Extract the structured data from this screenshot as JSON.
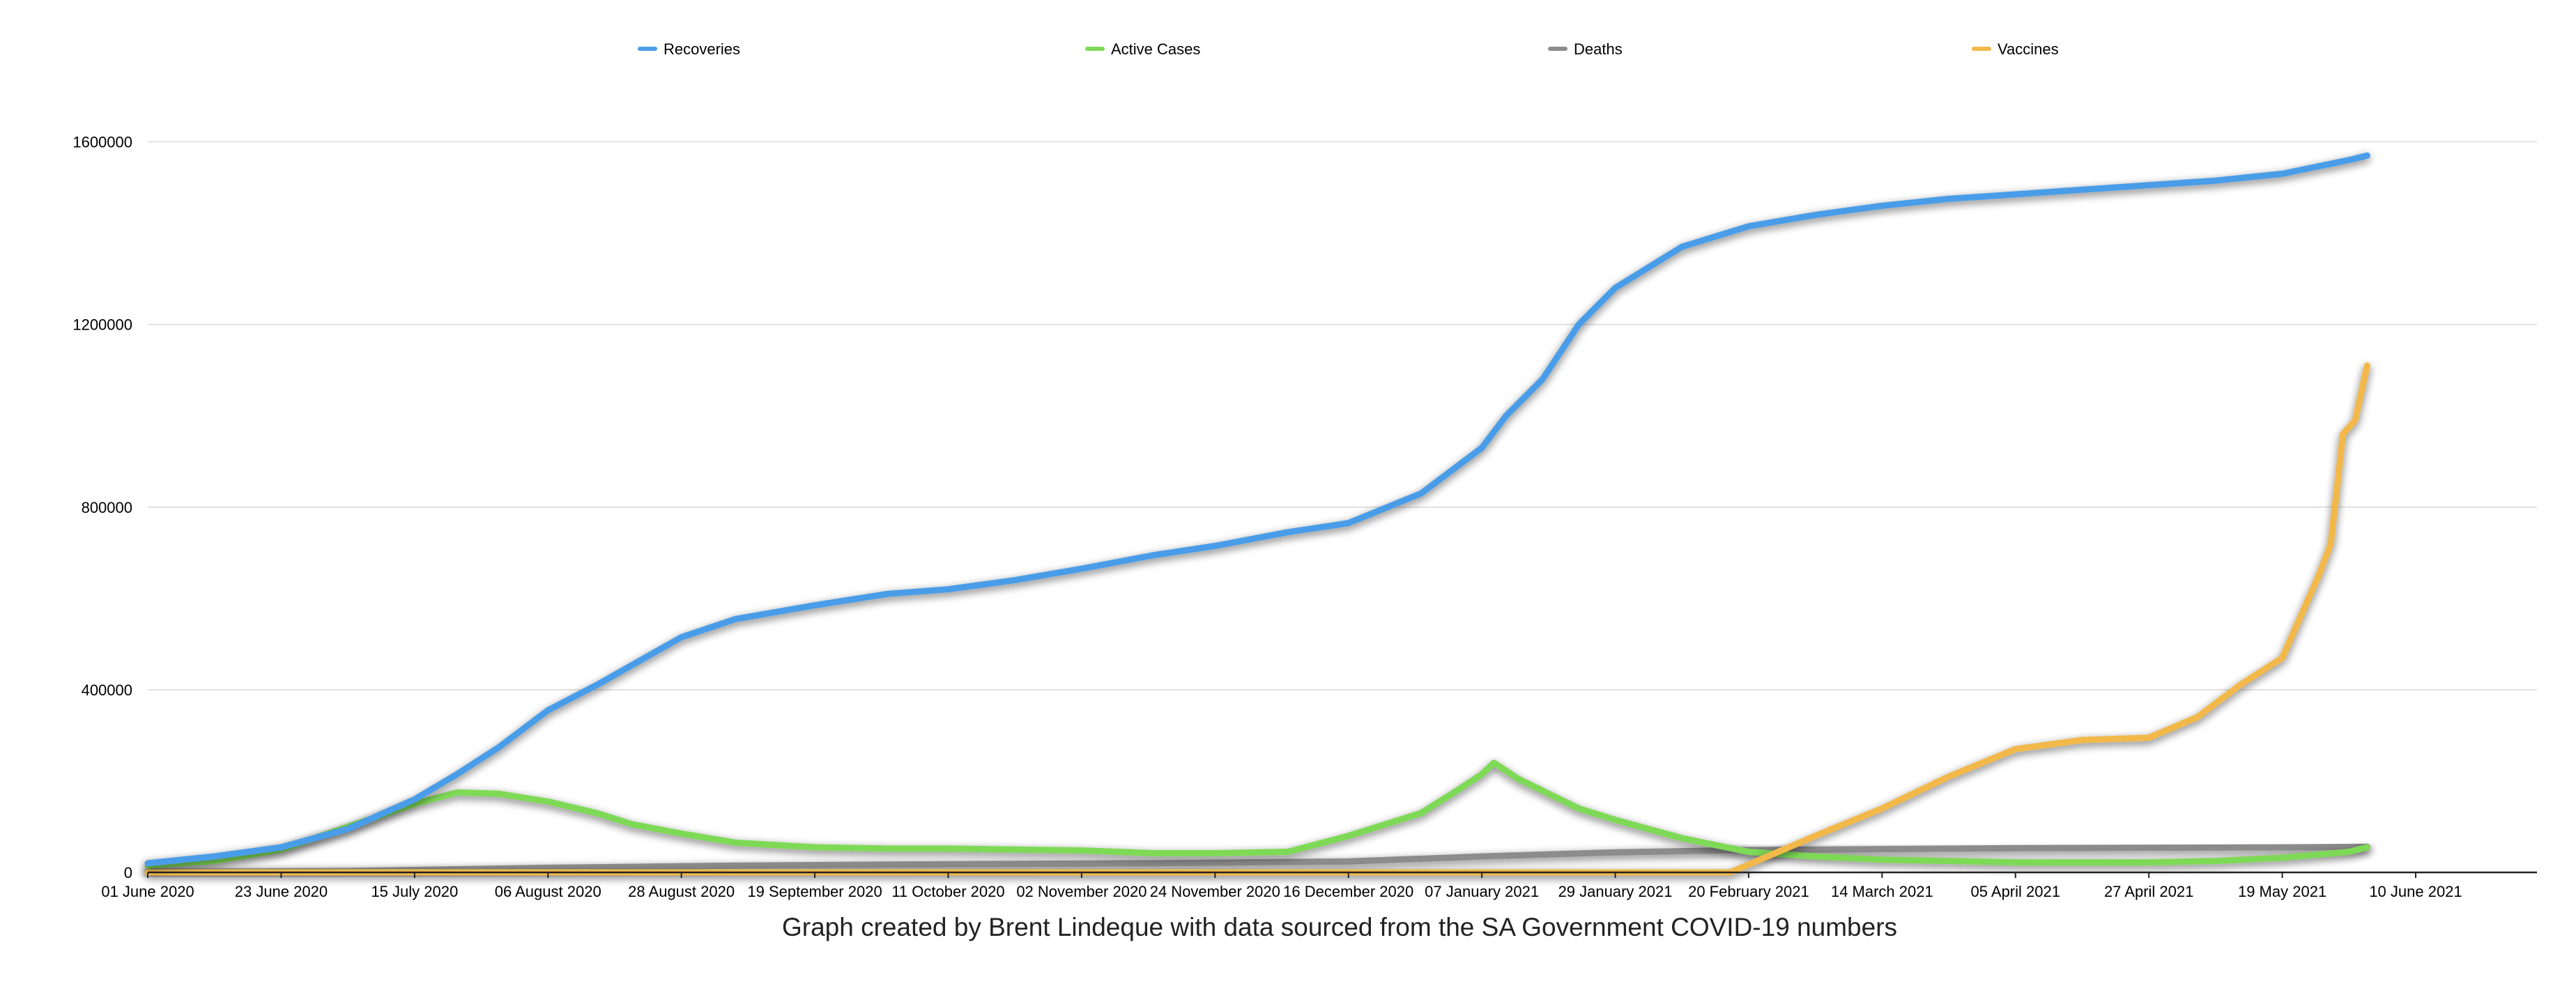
{
  "chart_data": {
    "type": "line",
    "title": "",
    "xlabel": "",
    "ylabel": "",
    "caption": "Graph created by Brent Lindeque with data sourced from the SA Government COVID-19 numbers",
    "x_ticks": [
      "01 June 2020",
      "23 June 2020",
      "15 July 2020",
      "06 August 2020",
      "28 August 2020",
      "19 September 2020",
      "11 October 2020",
      "02 November 2020",
      "24 November 2020",
      "16 December 2020",
      "07 January 2021",
      "29 January 2021",
      "20 February 2021",
      "14 March 2021",
      "05 April 2021",
      "27 April 2021",
      "19 May 2021",
      "10 June 2021"
    ],
    "x_start": "2020-06-01",
    "xlim": [
      "2020-06-01",
      "2021-06-30"
    ],
    "ylim": [
      0,
      1700000
    ],
    "y_ticks": [
      "0",
      "400000",
      "800000",
      "1200000",
      "1600000"
    ],
    "grid": true,
    "legend_position": "top",
    "series": [
      {
        "name": "Recoveries",
        "color": "#4A9DE8",
        "points": [
          [
            "2020-06-01",
            20000
          ],
          [
            "2020-06-12",
            35000
          ],
          [
            "2020-06-23",
            55000
          ],
          [
            "2020-07-04",
            95000
          ],
          [
            "2020-07-15",
            160000
          ],
          [
            "2020-07-22",
            215000
          ],
          [
            "2020-07-29",
            275000
          ],
          [
            "2020-08-06",
            355000
          ],
          [
            "2020-08-14",
            410000
          ],
          [
            "2020-08-20",
            455000
          ],
          [
            "2020-08-28",
            515000
          ],
          [
            "2020-09-06",
            555000
          ],
          [
            "2020-09-19",
            585000
          ],
          [
            "2020-10-01",
            610000
          ],
          [
            "2020-10-11",
            620000
          ],
          [
            "2020-10-22",
            640000
          ],
          [
            "2020-11-02",
            665000
          ],
          [
            "2020-11-14",
            695000
          ],
          [
            "2020-11-24",
            715000
          ],
          [
            "2020-12-06",
            745000
          ],
          [
            "2020-12-16",
            765000
          ],
          [
            "2020-12-28",
            830000
          ],
          [
            "2021-01-07",
            930000
          ],
          [
            "2021-01-11",
            1000000
          ],
          [
            "2021-01-17",
            1080000
          ],
          [
            "2021-01-23",
            1200000
          ],
          [
            "2021-01-29",
            1280000
          ],
          [
            "2021-02-09",
            1370000
          ],
          [
            "2021-02-20",
            1415000
          ],
          [
            "2021-03-03",
            1440000
          ],
          [
            "2021-03-14",
            1460000
          ],
          [
            "2021-03-25",
            1475000
          ],
          [
            "2021-04-05",
            1485000
          ],
          [
            "2021-04-16",
            1495000
          ],
          [
            "2021-04-27",
            1505000
          ],
          [
            "2021-05-08",
            1515000
          ],
          [
            "2021-05-19",
            1530000
          ],
          [
            "2021-05-30",
            1560000
          ],
          [
            "2021-06-02",
            1570000
          ]
        ]
      },
      {
        "name": "Active Cases",
        "color": "#7ED957",
        "points": [
          [
            "2020-06-01",
            15000
          ],
          [
            "2020-06-12",
            25000
          ],
          [
            "2020-06-23",
            50000
          ],
          [
            "2020-07-04",
            100000
          ],
          [
            "2020-07-15",
            150000
          ],
          [
            "2020-07-22",
            175000
          ],
          [
            "2020-07-29",
            172000
          ],
          [
            "2020-08-06",
            155000
          ],
          [
            "2020-08-14",
            130000
          ],
          [
            "2020-08-20",
            105000
          ],
          [
            "2020-08-28",
            85000
          ],
          [
            "2020-09-06",
            65000
          ],
          [
            "2020-09-19",
            55000
          ],
          [
            "2020-10-01",
            52000
          ],
          [
            "2020-10-11",
            52000
          ],
          [
            "2020-10-22",
            50000
          ],
          [
            "2020-11-02",
            48000
          ],
          [
            "2020-11-14",
            42000
          ],
          [
            "2020-11-24",
            42000
          ],
          [
            "2020-12-06",
            45000
          ],
          [
            "2020-12-16",
            80000
          ],
          [
            "2020-12-28",
            130000
          ],
          [
            "2021-01-03",
            180000
          ],
          [
            "2021-01-07",
            215000
          ],
          [
            "2021-01-09",
            240000
          ],
          [
            "2021-01-13",
            205000
          ],
          [
            "2021-01-23",
            140000
          ],
          [
            "2021-01-29",
            115000
          ],
          [
            "2021-02-09",
            75000
          ],
          [
            "2021-02-20",
            45000
          ],
          [
            "2021-03-03",
            35000
          ],
          [
            "2021-03-14",
            28000
          ],
          [
            "2021-03-25",
            25000
          ],
          [
            "2021-04-05",
            22000
          ],
          [
            "2021-04-16",
            22000
          ],
          [
            "2021-04-27",
            22000
          ],
          [
            "2021-05-08",
            25000
          ],
          [
            "2021-05-19",
            32000
          ],
          [
            "2021-05-30",
            45000
          ],
          [
            "2021-06-02",
            55000
          ]
        ]
      },
      {
        "name": "Deaths",
        "color": "#8C8C8C",
        "points": [
          [
            "2020-06-01",
            1000
          ],
          [
            "2020-07-04",
            3000
          ],
          [
            "2020-08-06",
            10000
          ],
          [
            "2020-09-06",
            15000
          ],
          [
            "2020-10-11",
            18000
          ],
          [
            "2020-11-14",
            20000
          ],
          [
            "2020-12-16",
            24000
          ],
          [
            "2021-01-07",
            35000
          ],
          [
            "2021-01-29",
            44000
          ],
          [
            "2021-02-20",
            49000
          ],
          [
            "2021-03-14",
            51000
          ],
          [
            "2021-04-05",
            53000
          ],
          [
            "2021-04-27",
            54000
          ],
          [
            "2021-05-19",
            55000
          ],
          [
            "2021-06-02",
            56000
          ]
        ]
      },
      {
        "name": "Vaccines",
        "color": "#F2B84A",
        "points": [
          [
            "2020-06-01",
            0
          ],
          [
            "2021-02-17",
            0
          ],
          [
            "2021-02-24",
            40000
          ],
          [
            "2021-03-03",
            80000
          ],
          [
            "2021-03-14",
            140000
          ],
          [
            "2021-03-25",
            210000
          ],
          [
            "2021-04-05",
            270000
          ],
          [
            "2021-04-16",
            290000
          ],
          [
            "2021-04-27",
            295000
          ],
          [
            "2021-05-05",
            340000
          ],
          [
            "2021-05-12",
            410000
          ],
          [
            "2021-05-19",
            470000
          ],
          [
            "2021-05-22",
            560000
          ],
          [
            "2021-05-25",
            650000
          ],
          [
            "2021-05-27",
            720000
          ],
          [
            "2021-05-29",
            960000
          ],
          [
            "2021-05-31",
            990000
          ],
          [
            "2021-06-02",
            1110000
          ]
        ]
      }
    ]
  }
}
